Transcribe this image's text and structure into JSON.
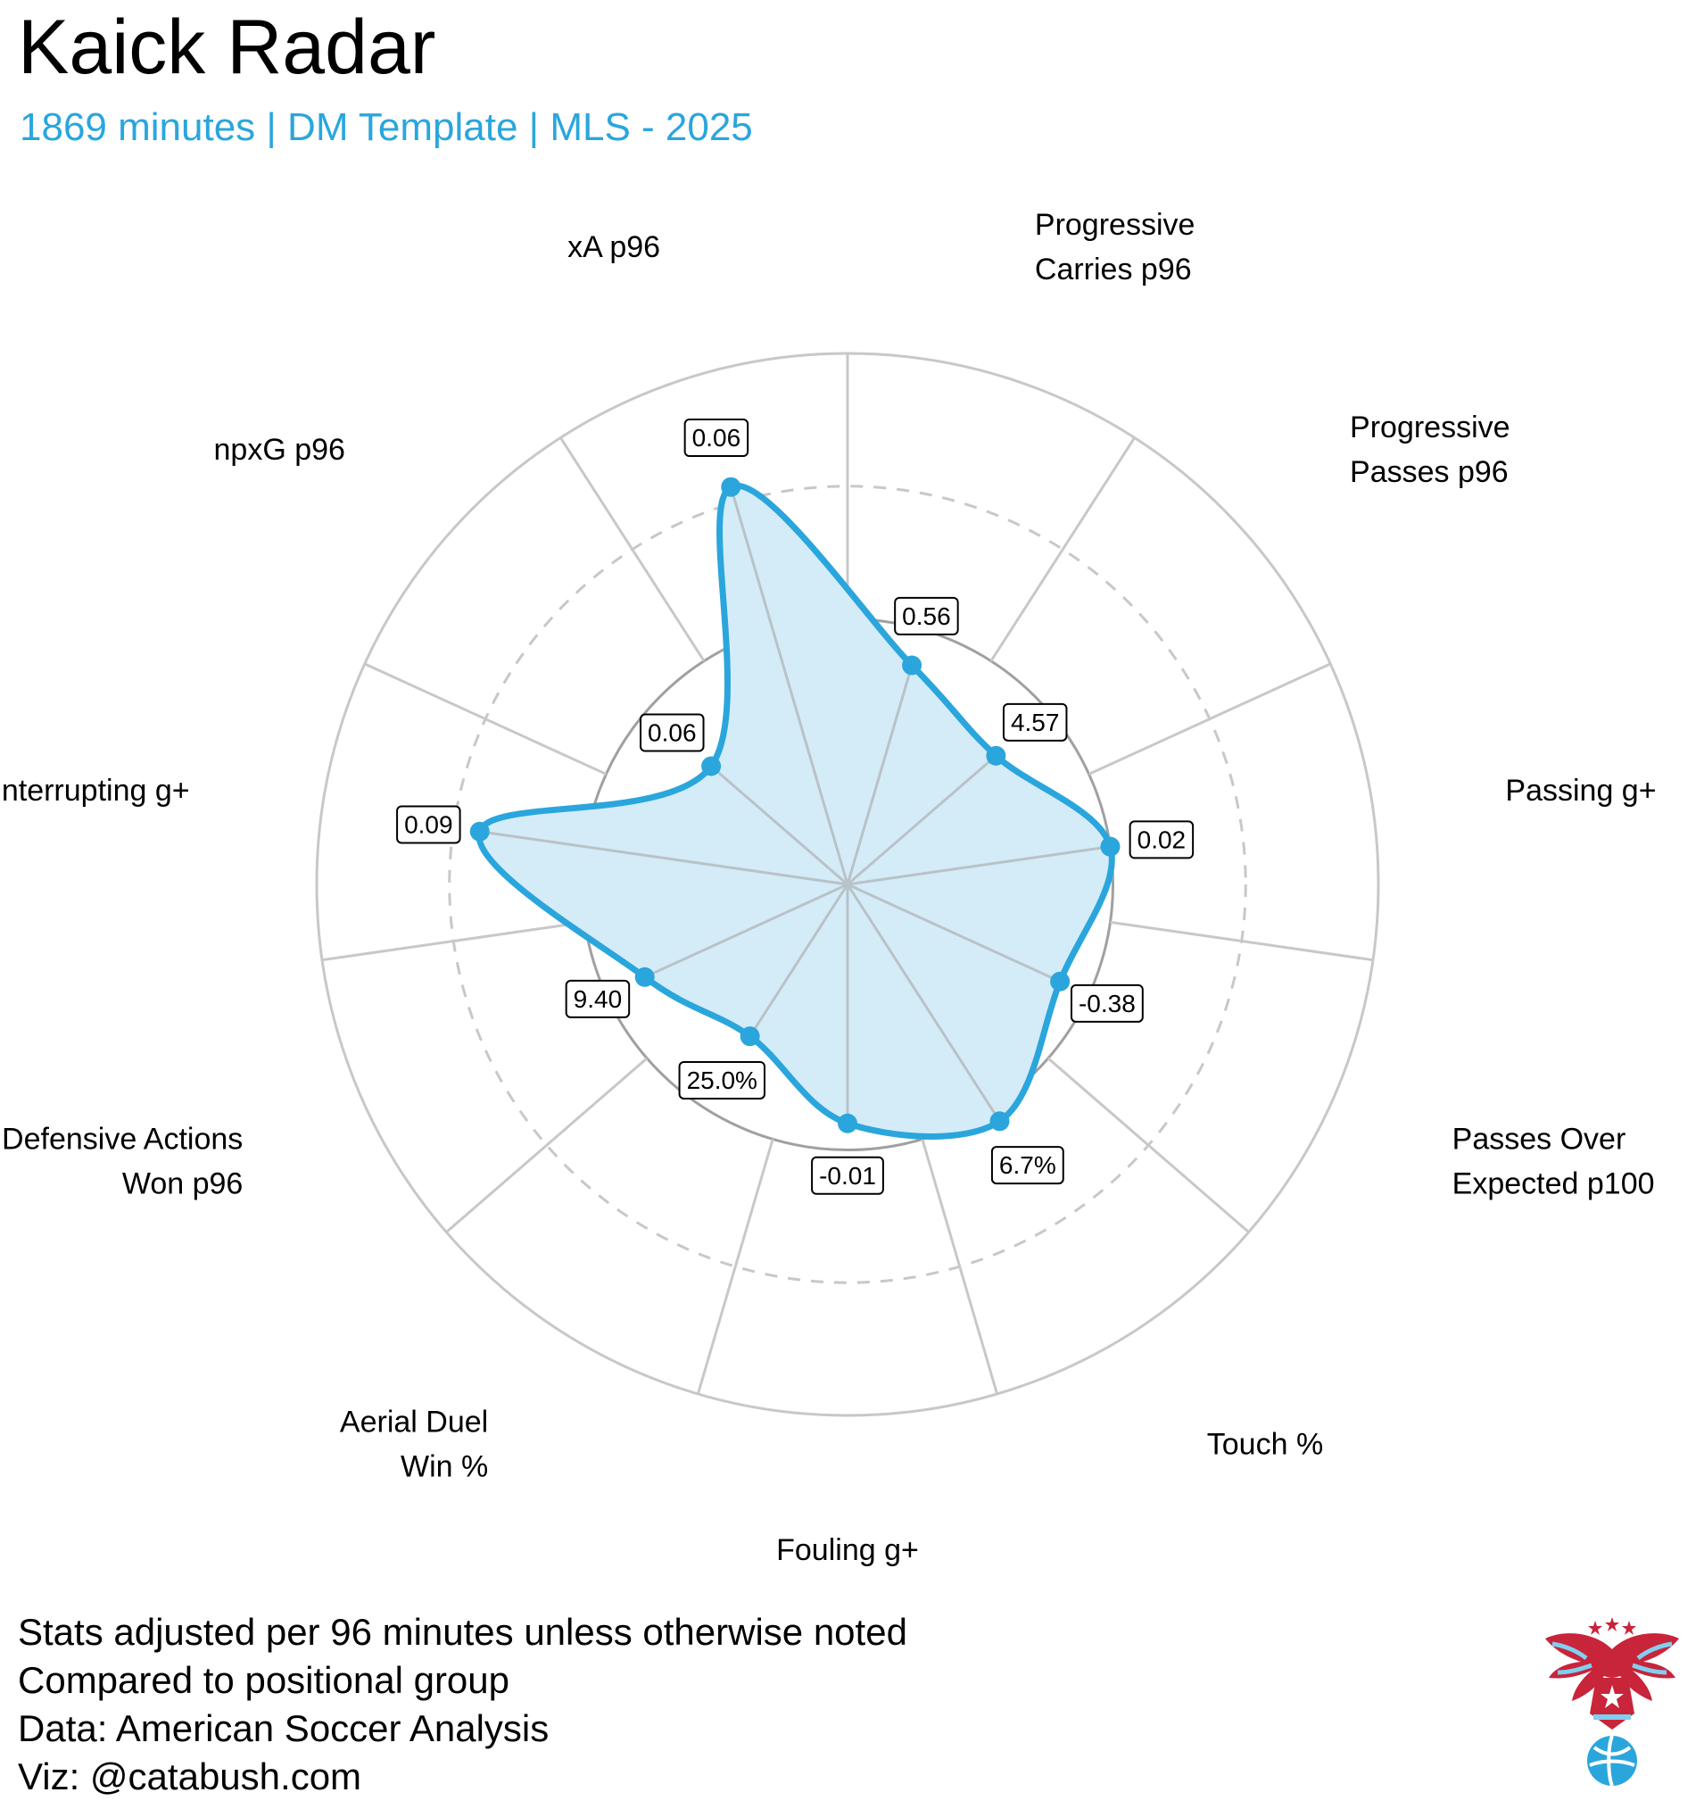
{
  "header": {
    "title": "Kaick Radar",
    "subtitle": "1869 minutes | DM Template | MLS - 2025"
  },
  "colors": {
    "accent": "#2aa6dc",
    "fill": "#d4ecf8",
    "grid": "#c8c8c8",
    "ring_dark": "#a0a0a0"
  },
  "chart_data": {
    "type": "radar",
    "title": "Kaick Radar",
    "subtitle": "1869 minutes | DM Template | MLS - 2025",
    "scale": "percentile",
    "rlim": [
      0,
      100
    ],
    "rings": [
      25,
      50,
      75,
      100
    ],
    "dashed_rings": [
      25,
      75
    ],
    "grid": true,
    "axes": [
      {
        "name": "Progressive Carries p96",
        "lines": [
          "Progressive",
          "Carries p96"
        ],
        "value_label": "0.56",
        "percentile": 43
      },
      {
        "name": "Progressive Passes p96",
        "lines": [
          "Progressive",
          "Passes p96"
        ],
        "value_label": "4.57",
        "percentile": 37
      },
      {
        "name": "Passing g+",
        "lines": [
          "Passing g+"
        ],
        "value_label": "0.02",
        "percentile": 50
      },
      {
        "name": "Passes Over Expected p100",
        "lines": [
          "Passes Over",
          "Expected p100"
        ],
        "value_label": "-0.38",
        "percentile": 44
      },
      {
        "name": "Touch %",
        "lines": [
          "Touch %"
        ],
        "value_label": "6.7%",
        "percentile": 53
      },
      {
        "name": "Fouling g+",
        "lines": [
          "Fouling g+"
        ],
        "value_label": "-0.01",
        "percentile": 45
      },
      {
        "name": "Aerial Duel Win %",
        "lines": [
          "Aerial Duel",
          "Win %"
        ],
        "value_label": "25.0%",
        "percentile": 34
      },
      {
        "name": "Defensive Actions Won p96",
        "lines": [
          "Defensive Actions",
          "Won p96"
        ],
        "value_label": "9.40",
        "percentile": 42
      },
      {
        "name": "Interrupting g+",
        "lines": [
          "Interrupting g+"
        ],
        "value_label": "0.09",
        "percentile": 70
      },
      {
        "name": "npxG p96",
        "lines": [
          "npxG p96"
        ],
        "value_label": "0.06",
        "percentile": 34
      },
      {
        "name": "xA p96",
        "lines": [
          "xA p96"
        ],
        "value_label": "0.06",
        "percentile": 78
      }
    ]
  },
  "footer": {
    "lines": [
      "Stats adjusted per 96 minutes unless otherwise noted",
      "Compared to positional group",
      "Data: American Soccer Analysis",
      "Viz: @catabush.com"
    ]
  },
  "logo": {
    "icon": "eagle-soccer-ball-logo"
  }
}
